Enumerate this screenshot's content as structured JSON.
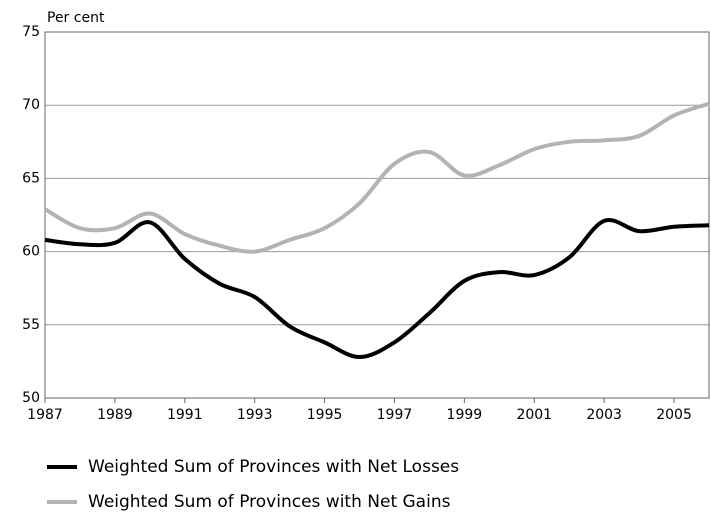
{
  "chart_data": {
    "type": "line",
    "y_label": "Per cent",
    "x": [
      1987,
      1988,
      1989,
      1990,
      1991,
      1992,
      1993,
      1994,
      1995,
      1996,
      1997,
      1998,
      1999,
      2000,
      2001,
      2002,
      2003,
      2004,
      2005,
      2006
    ],
    "series": [
      {
        "name": "Weighted Sum of Provinces with Net Losses",
        "color": "#000000",
        "values": [
          60.8,
          60.5,
          60.6,
          62.0,
          59.5,
          57.8,
          56.9,
          54.9,
          53.8,
          52.8,
          53.8,
          55.8,
          58.0,
          58.6,
          58.4,
          59.6,
          62.1,
          61.4,
          61.7,
          61.8
        ]
      },
      {
        "name": "Weighted Sum of Provinces with Net Gains",
        "color": "#b3b3b3",
        "values": [
          62.9,
          61.6,
          61.6,
          62.6,
          61.2,
          60.4,
          60.0,
          60.8,
          61.6,
          63.3,
          66.0,
          66.8,
          65.2,
          65.9,
          67.0,
          67.5,
          67.6,
          67.9,
          69.3,
          70.1
        ]
      }
    ],
    "xlim": [
      1987,
      2006
    ],
    "xticks": [
      1987,
      1989,
      1991,
      1993,
      1995,
      1997,
      1999,
      2001,
      2003,
      2005
    ],
    "ylim": [
      50,
      75
    ],
    "yticks": [
      50,
      55,
      60,
      65,
      70,
      75
    ],
    "grid": true
  }
}
